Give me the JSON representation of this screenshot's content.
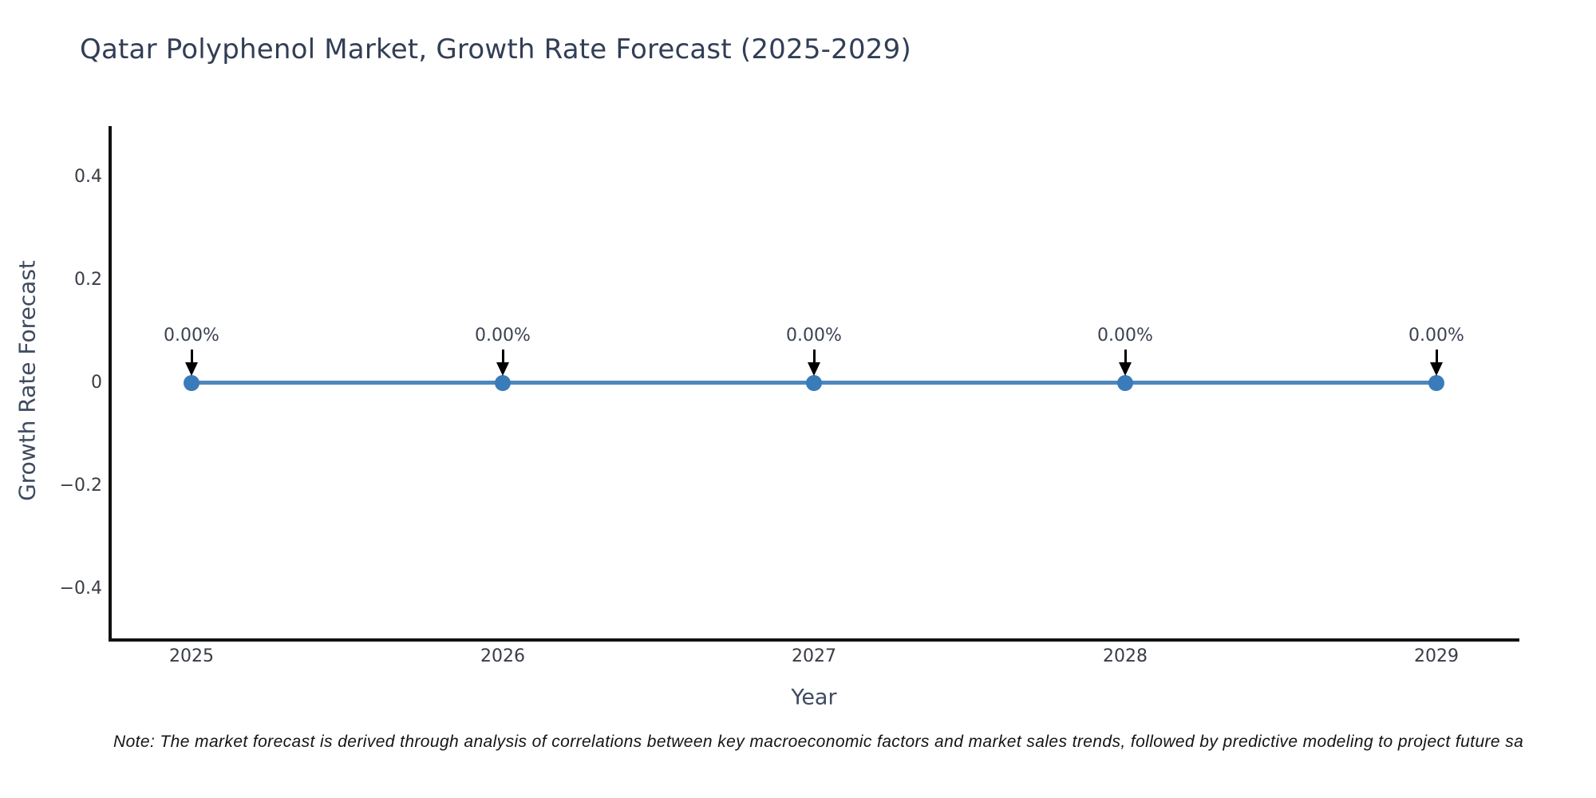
{
  "figure": {
    "note": "Note: The market forecast is derived through analysis of correlations between key macroeconomic factors and market sales trends, followed by predictive modeling to project future sa"
  },
  "chart_data": {
    "type": "line",
    "title": "Qatar Polyphenol Market, Growth Rate Forecast (2025-2029)",
    "xlabel": "Year",
    "ylabel": "Growth Rate Forecast",
    "x": [
      2025,
      2026,
      2027,
      2028,
      2029
    ],
    "xtick_labels": [
      "2025",
      "2026",
      "2027",
      "2028",
      "2029"
    ],
    "series": [
      {
        "name": "Growth Rate Forecast",
        "values": [
          0,
          0,
          0,
          0,
          0
        ]
      }
    ],
    "point_labels": [
      "0.00%",
      "0.00%",
      "0.00%",
      "0.00%",
      "0.00%"
    ],
    "ytick_values": [
      0.4,
      0.2,
      0,
      -0.2,
      -0.4
    ],
    "ytick_labels": [
      "0.4",
      "0.2",
      "0",
      "−0.2",
      "−0.4"
    ],
    "ylim": [
      -0.5,
      0.5
    ],
    "grid": false,
    "legend_visible": false
  },
  "colors": {
    "background": "#ffffff",
    "line": "#4d87bd",
    "marker": "#3a7cba",
    "spine": "#111111",
    "title_text": "#323e56",
    "axis_label_text": "#3e4a5f",
    "tick_text": "#383d46",
    "annotation_text": "#3b4252",
    "arrow": "#000000",
    "note_text": "#141414"
  }
}
